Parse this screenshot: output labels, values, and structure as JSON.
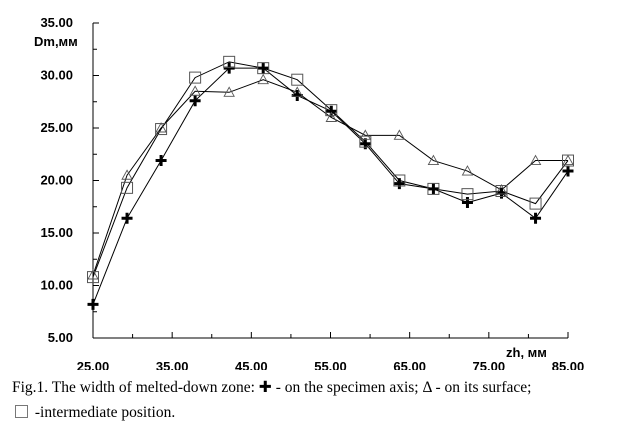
{
  "chart_data": {
    "type": "line",
    "xlabel": "zh, мм",
    "ylabel": "Dm,мм",
    "xlim": [
      25,
      85
    ],
    "ylim": [
      5,
      35
    ],
    "x_ticks": [
      "25.00",
      "35.00",
      "45.00",
      "55.00",
      "65.00",
      "75.00",
      "85.00"
    ],
    "y_ticks": [
      "5.00",
      "10.00",
      "15.00",
      "20.00",
      "25.00",
      "30.00",
      "35.00"
    ],
    "x": [
      25,
      29.3,
      33.6,
      37.9,
      42.2,
      46.5,
      50.8,
      55.1,
      59.4,
      63.7,
      68,
      72.3,
      76.6,
      80.9,
      85
    ],
    "series": [
      {
        "marker": "plus",
        "values": [
          8.2,
          16.4,
          21.9,
          27.6,
          30.7,
          30.7,
          28.1,
          26.6,
          23.5,
          19.7,
          19.2,
          17.9,
          18.8,
          16.4,
          20.9
        ]
      },
      {
        "marker": "triangle",
        "values": [
          11.0,
          20.5,
          25.0,
          28.5,
          28.4,
          29.6,
          28.4,
          26.0,
          24.3,
          24.3,
          21.9,
          20.9,
          19.1,
          21.9,
          21.9
        ]
      },
      {
        "marker": "square",
        "values": [
          10.8,
          19.3,
          24.9,
          29.8,
          31.3,
          30.7,
          29.6,
          26.7,
          23.7,
          20.0,
          19.2,
          18.7,
          19.0,
          17.8,
          21.9
        ]
      }
    ],
    "grid": false,
    "colors": {
      "line": "#000000",
      "marker_plus": "#000000",
      "marker_open": "#555555"
    }
  },
  "caption": {
    "line1_prefix": "Fig.1.  The width of melted-down zone: ",
    "plus_symbol": "✚",
    "line1_mid": " - on the specimen axis; ",
    "delta_symbol": "Δ",
    "line1_suffix": " - on its surface;",
    "line2_text": " -intermediate position."
  }
}
